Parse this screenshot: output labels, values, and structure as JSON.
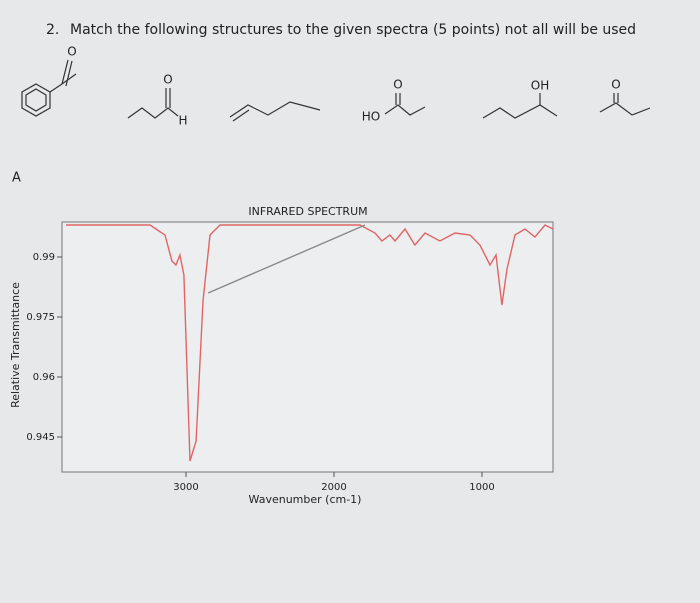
{
  "question": {
    "number": "2.",
    "text": "Match the following structures to the given spectra (5 points) not all will be used"
  },
  "structures": [
    {
      "atoms": [
        "O"
      ]
    },
    {
      "atoms": [
        "O",
        "H"
      ]
    },
    {
      "atoms": [
        "O",
        "HO"
      ]
    },
    {
      "atoms": [
        "OH"
      ]
    },
    {
      "atoms": [
        "O"
      ]
    }
  ],
  "spectrum_label": "A",
  "chart_data": {
    "type": "line",
    "title": "INFRARED SPECTRUM",
    "xlabel": "Wavenumber (cm-1)",
    "ylabel": "Relative Transmittance",
    "xlim": [
      3838,
      520
    ],
    "ylim": [
      0.93625,
      0.99875
    ],
    "xticks": [
      3000,
      2000,
      1000
    ],
    "yticks": [
      0.99,
      0.975,
      0.96,
      0.945
    ],
    "series": [
      {
        "color": "#e06666",
        "x": [
          3811,
          3243,
          3142,
          3095,
          3068,
          3041,
          3014,
          2973,
          2932,
          2885,
          2838,
          2770,
          1824,
          1723,
          1676,
          1622,
          1588,
          1520,
          1453,
          1385,
          1284,
          1182,
          1081,
          1014,
          946,
          905,
          865,
          831,
          777,
          709,
          642,
          574,
          520
        ],
        "values": [
          0.998,
          0.998,
          0.9955,
          0.989,
          0.988,
          0.9905,
          0.9855,
          0.939,
          0.944,
          0.979,
          0.9955,
          0.998,
          0.998,
          0.996,
          0.994,
          0.9955,
          0.994,
          0.997,
          0.993,
          0.996,
          0.994,
          0.996,
          0.9955,
          0.993,
          0.988,
          0.9905,
          0.978,
          0.987,
          0.9955,
          0.997,
          0.995,
          0.998,
          0.997
        ]
      },
      {
        "color": "#8a8a8a",
        "x": [
          2851,
          1790
        ],
        "values": [
          0.981,
          0.998
        ]
      }
    ]
  }
}
